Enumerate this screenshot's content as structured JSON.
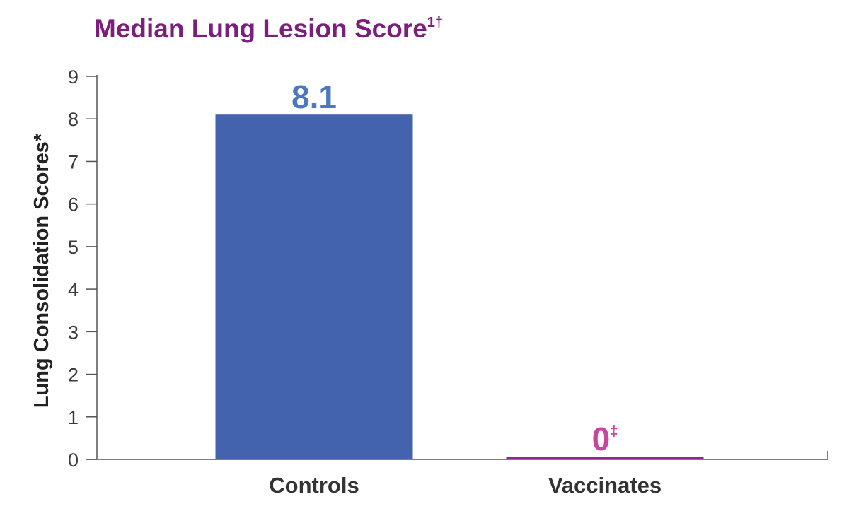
{
  "chart_data": {
    "type": "bar",
    "title": "Median Lung Lesion Score",
    "title_superscript": "1†",
    "ylabel": "Lung Consolidation Scores*",
    "xlabel": "",
    "categories": [
      "Controls",
      "Vaccinates"
    ],
    "values": [
      8.1,
      0
    ],
    "data_labels": [
      "8.1",
      "0"
    ],
    "data_label_marks": [
      "",
      "‡"
    ],
    "yticks": [
      "0",
      "1",
      "2",
      "3",
      "4",
      "5",
      "6",
      "7",
      "8",
      "9"
    ],
    "ylim": [
      0,
      9
    ],
    "grid": false,
    "colors": {
      "title": "#7b1f7d",
      "bars": [
        "#4463ae",
        "#8e2a8f"
      ],
      "labels": [
        "#4a79c0",
        "#c8479e"
      ],
      "axis": "#555555"
    }
  }
}
